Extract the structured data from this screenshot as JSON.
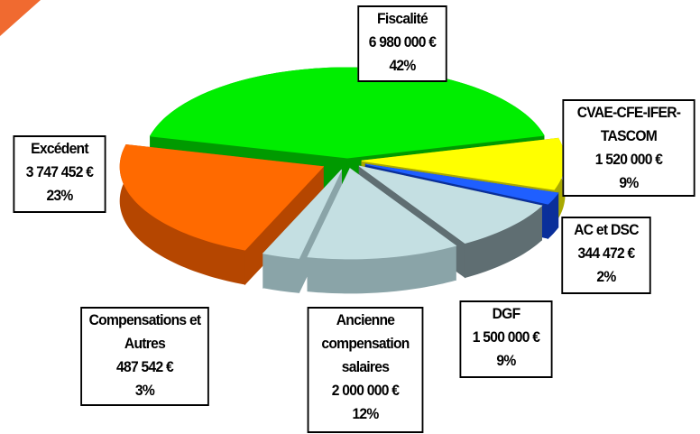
{
  "chart_data": {
    "type": "pie",
    "categories": [
      "Fiscalité",
      "CVAE-CFE-IFER-TASCOM",
      "AC et DSC",
      "DGF",
      "Ancienne compensation salaires",
      "Compensations et Autres",
      "Excédent"
    ],
    "values": [
      6980000,
      1520000,
      344472,
      1500000,
      2000000,
      487542,
      3747452
    ],
    "value_labels": [
      "6 980 000 €",
      "1 520 000 €",
      "344 472 €",
      "1 500 000 €",
      "2 000 000 €",
      "487 542 €",
      "3 747 452 €"
    ],
    "percents": [
      42,
      9,
      2,
      9,
      12,
      3,
      23
    ],
    "percent_labels": [
      "42%",
      "9%",
      "2%",
      "9%",
      "12%",
      "3%",
      "23%"
    ],
    "colors": [
      "#00ee00",
      "#ffff00",
      "#1f5fff",
      "#c4dfe2",
      "#c4dfe2",
      "#c4dfe2",
      "#ff6a00"
    ],
    "side_colors": [
      "#009a00",
      "#a9a900",
      "#0a2f9a",
      "#5f6e72",
      "#8aa4a8",
      "#8aa4a8",
      "#b54600"
    ]
  }
}
